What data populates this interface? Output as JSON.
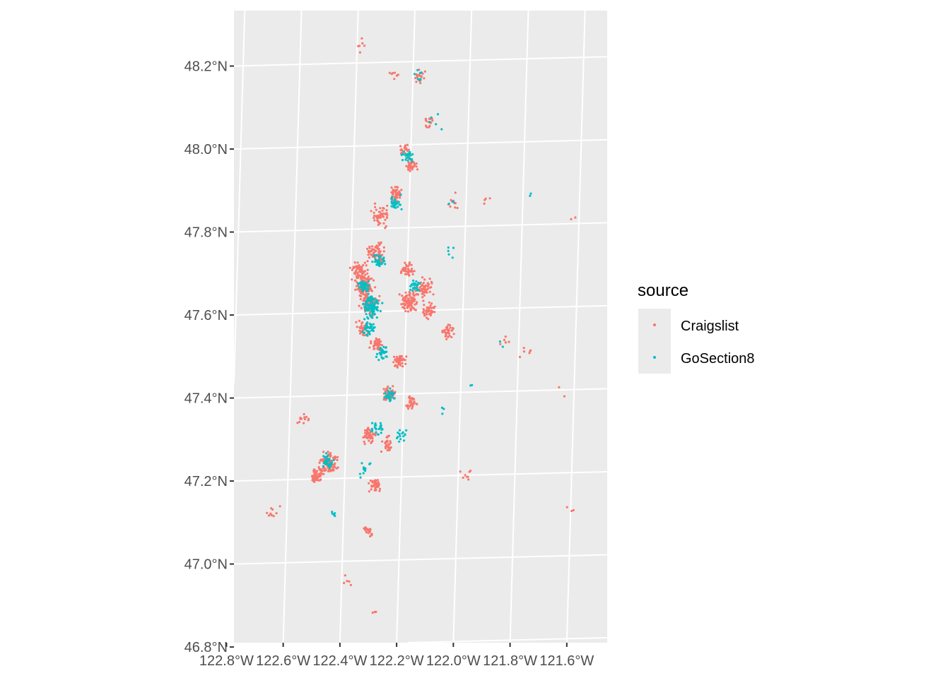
{
  "chart_data": {
    "type": "scatter",
    "title": "",
    "xlabel": "",
    "ylabel": "",
    "projection": "map (lon/lat graticule, slightly rotated)",
    "xlim": [
      -122.8,
      -121.55
    ],
    "ylim": [
      46.8,
      48.27
    ],
    "grid": true,
    "x_ticks": [
      {
        "value": -122.8,
        "label": "122.8°W"
      },
      {
        "value": -122.6,
        "label": "122.6°W"
      },
      {
        "value": -122.4,
        "label": "122.4°W"
      },
      {
        "value": -122.2,
        "label": "122.2°W"
      },
      {
        "value": -122.0,
        "label": "122.0°W"
      },
      {
        "value": -121.8,
        "label": "121.8°W"
      },
      {
        "value": -121.6,
        "label": "121.6°W"
      }
    ],
    "y_ticks": [
      {
        "value": 46.8,
        "label": "46.8°N"
      },
      {
        "value": 47.0,
        "label": "47.0°N"
      },
      {
        "value": 47.2,
        "label": "47.2°N"
      },
      {
        "value": 47.4,
        "label": "47.4°N"
      },
      {
        "value": 47.6,
        "label": "47.6°N"
      },
      {
        "value": 47.8,
        "label": "47.8°N"
      },
      {
        "value": 48.0,
        "label": "48.0°N"
      },
      {
        "value": 48.2,
        "label": "48.2°N"
      }
    ],
    "legend": {
      "title": "source",
      "position": "right",
      "entries": [
        {
          "name": "Craigslist",
          "color": "#F8766D"
        },
        {
          "name": "GoSection8",
          "color": "#00BFC4"
        }
      ]
    },
    "series": [
      {
        "name": "Craigslist",
        "color": "#F8766D",
        "points_note": "approximate cluster centers (lon, lat, count) read from the figure",
        "clusters": [
          [
            -122.35,
            47.66,
            140
          ],
          [
            -122.37,
            47.7,
            60
          ],
          [
            -122.33,
            47.62,
            60
          ],
          [
            -122.31,
            47.74,
            70
          ],
          [
            -122.3,
            47.83,
            55
          ],
          [
            -122.25,
            47.88,
            50
          ],
          [
            -122.2,
            47.95,
            35
          ],
          [
            -122.22,
            47.99,
            20
          ],
          [
            -122.19,
            47.62,
            80
          ],
          [
            -122.14,
            47.65,
            55
          ],
          [
            -122.12,
            47.6,
            40
          ],
          [
            -122.2,
            47.7,
            40
          ],
          [
            -122.05,
            47.55,
            35
          ],
          [
            -122.3,
            47.52,
            45
          ],
          [
            -122.22,
            47.48,
            45
          ],
          [
            -122.35,
            47.56,
            40
          ],
          [
            -122.25,
            47.4,
            50
          ],
          [
            -122.17,
            47.38,
            30
          ],
          [
            -122.32,
            47.3,
            45
          ],
          [
            -122.25,
            47.28,
            30
          ],
          [
            -122.46,
            47.24,
            100
          ],
          [
            -122.5,
            47.21,
            50
          ],
          [
            -122.29,
            47.18,
            40
          ],
          [
            -122.31,
            47.07,
            20
          ],
          [
            -122.18,
            48.16,
            20
          ],
          [
            -122.14,
            48.05,
            15
          ],
          [
            -122.05,
            47.86,
            10
          ],
          [
            -121.98,
            47.2,
            8
          ],
          [
            -121.85,
            47.52,
            6
          ],
          [
            -121.78,
            47.5,
            6
          ],
          [
            -122.55,
            47.35,
            12
          ],
          [
            -122.65,
            47.12,
            10
          ],
          [
            -121.6,
            47.11,
            3
          ],
          [
            -121.64,
            47.4,
            2
          ],
          [
            -122.39,
            48.24,
            6
          ],
          [
            -122.27,
            48.17,
            8
          ],
          [
            -121.62,
            47.81,
            2
          ],
          [
            -121.93,
            47.86,
            4
          ],
          [
            -122.38,
            46.95,
            5
          ],
          [
            -122.28,
            46.88,
            3
          ]
        ]
      },
      {
        "name": "GoSection8",
        "color": "#00BFC4",
        "points_note": "approximate cluster centers (lon, lat, count) read from the figure",
        "clusters": [
          [
            -122.32,
            47.61,
            90
          ],
          [
            -122.35,
            47.66,
            40
          ],
          [
            -122.3,
            47.72,
            35
          ],
          [
            -122.33,
            47.56,
            35
          ],
          [
            -122.28,
            47.5,
            30
          ],
          [
            -122.25,
            47.86,
            30
          ],
          [
            -122.21,
            47.97,
            25
          ],
          [
            -122.17,
            47.66,
            25
          ],
          [
            -122.25,
            47.4,
            30
          ],
          [
            -122.29,
            47.32,
            25
          ],
          [
            -122.46,
            47.24,
            35
          ],
          [
            -122.33,
            47.22,
            15
          ],
          [
            -122.2,
            47.3,
            15
          ],
          [
            -122.18,
            48.17,
            8
          ],
          [
            -122.12,
            48.05,
            5
          ],
          [
            -122.05,
            47.74,
            5
          ],
          [
            -122.05,
            47.86,
            3
          ],
          [
            -121.78,
            47.86,
            2
          ],
          [
            -121.85,
            47.52,
            2
          ],
          [
            -121.96,
            47.42,
            2
          ],
          [
            -122.06,
            47.35,
            3
          ],
          [
            -122.44,
            47.12,
            5
          ]
        ]
      }
    ]
  }
}
